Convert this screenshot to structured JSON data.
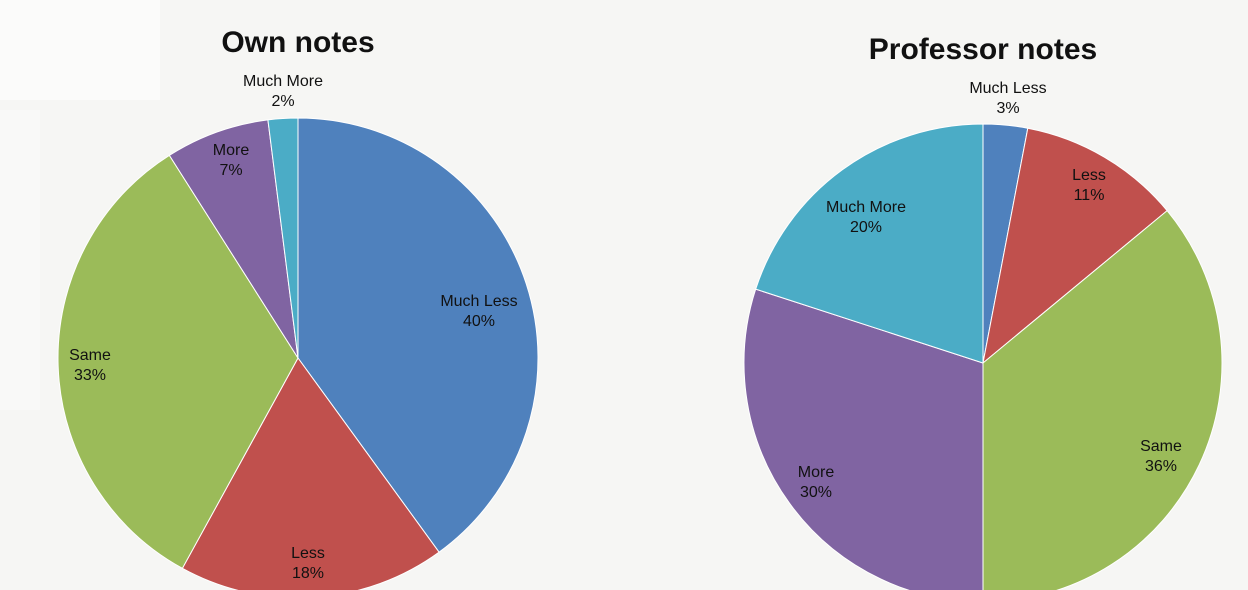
{
  "chart_data": [
    {
      "type": "pie",
      "title": "Own notes",
      "slices": [
        {
          "label": "Much Less",
          "value": 40,
          "display": "40%",
          "color": "#4f81bd"
        },
        {
          "label": "Less",
          "value": 18,
          "display": "18%",
          "color": "#c0504d"
        },
        {
          "label": "Same",
          "value": 33,
          "display": "33%",
          "color": "#9bbb59"
        },
        {
          "label": "More",
          "value": 7,
          "display": "7%",
          "color": "#8064a2"
        },
        {
          "label": "Much More",
          "value": 2,
          "display": "2%",
          "color": "#4bacc6"
        }
      ]
    },
    {
      "type": "pie",
      "title": "Professor notes",
      "slices": [
        {
          "label": "Much Less",
          "value": 3,
          "display": "3%",
          "color": "#4f81bd"
        },
        {
          "label": "Less",
          "value": 11,
          "display": "11%",
          "color": "#c0504d"
        },
        {
          "label": "Same",
          "value": 36,
          "display": "36%",
          "color": "#9bbb59"
        },
        {
          "label": "More",
          "value": 30,
          "display": "30%",
          "color": "#8064a2"
        },
        {
          "label": "Much More",
          "value": 20,
          "display": "20%",
          "color": "#4bacc6"
        }
      ]
    }
  ]
}
